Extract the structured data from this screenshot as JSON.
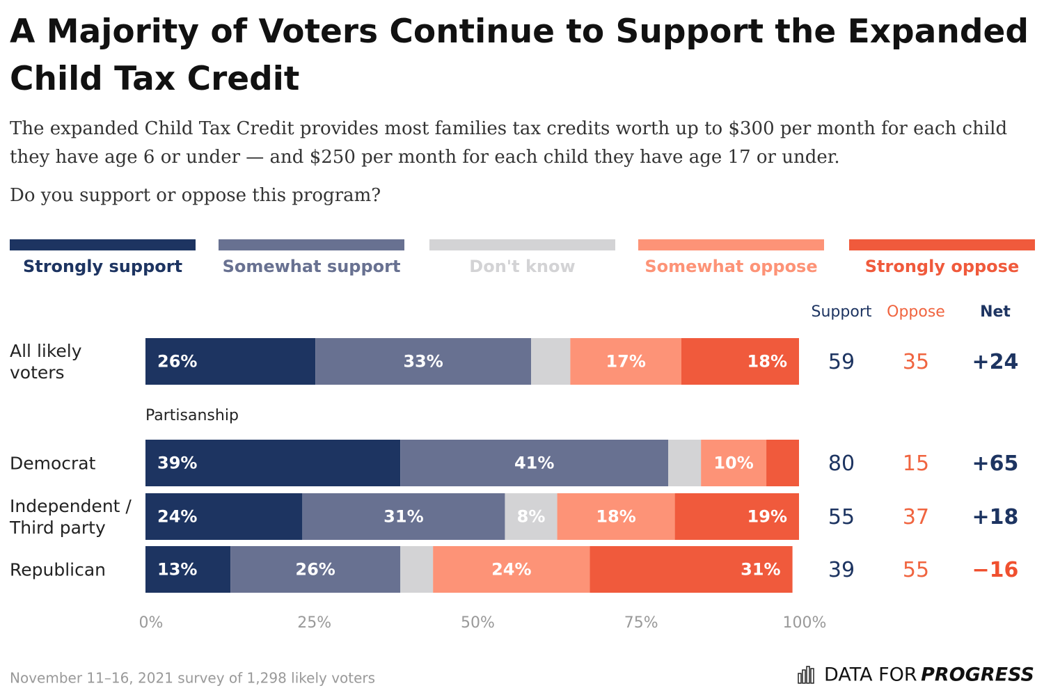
{
  "chart_data": {
    "type": "stacked-bar",
    "title": "A Majority of Voters Continue to Support the Expanded Child Tax Credit",
    "subtitle": "The expanded Child Tax Credit provides most families tax credits worth up to $300 per month for each child they have age 6 or under — and $250 per month for each child they have age 17 or under.",
    "question": "Do you support or oppose this program?",
    "categories": [
      "All likely voters",
      "Democrat",
      "Independent / Third party",
      "Republican"
    ],
    "group_label": "Partisanship",
    "series": [
      {
        "name": "Strongly support",
        "color": "#1d3461",
        "values": [
          26,
          39,
          24,
          13
        ],
        "value_labels": [
          "26%",
          "39%",
          "24%",
          "13%"
        ]
      },
      {
        "name": "Somewhat support",
        "color": "#687191",
        "values": [
          33,
          41,
          31,
          26
        ],
        "value_labels": [
          "33%",
          "41%",
          "31%",
          "26%"
        ]
      },
      {
        "name": "Don't know",
        "color": "#d3d3d5",
        "values": [
          6,
          5,
          8,
          5
        ],
        "value_labels": [
          null,
          null,
          "8%",
          null
        ]
      },
      {
        "name": "Somewhat oppose",
        "color": "#fd9377",
        "values": [
          17,
          10,
          18,
          24
        ],
        "value_labels": [
          "17%",
          "10%",
          "18%",
          "24%"
        ]
      },
      {
        "name": "Strongly oppose",
        "color": "#f05a3c",
        "values": [
          18,
          5,
          19,
          31
        ],
        "value_labels": [
          "18%",
          null,
          "19%",
          "31%"
        ]
      }
    ],
    "xlim": [
      0,
      100
    ],
    "xticks": [
      {
        "value": 0,
        "label": "0%"
      },
      {
        "value": 25,
        "label": "25%"
      },
      {
        "value": 50,
        "label": "50%"
      },
      {
        "value": 75,
        "label": "75%"
      },
      {
        "value": 100,
        "label": "100%"
      }
    ],
    "summary_headers": [
      "Support",
      "Oppose",
      "Net"
    ],
    "support": [
      59,
      80,
      55,
      39
    ],
    "oppose": [
      35,
      15,
      37,
      55
    ],
    "net": [
      24,
      65,
      18,
      -16
    ],
    "net_labels": [
      "+24",
      "+65",
      "+18",
      "−16"
    ],
    "source": "November 11–16, 2021 survey of 1,298 likely voters",
    "logo": [
      "DATA FOR",
      "PROGRESS"
    ]
  }
}
